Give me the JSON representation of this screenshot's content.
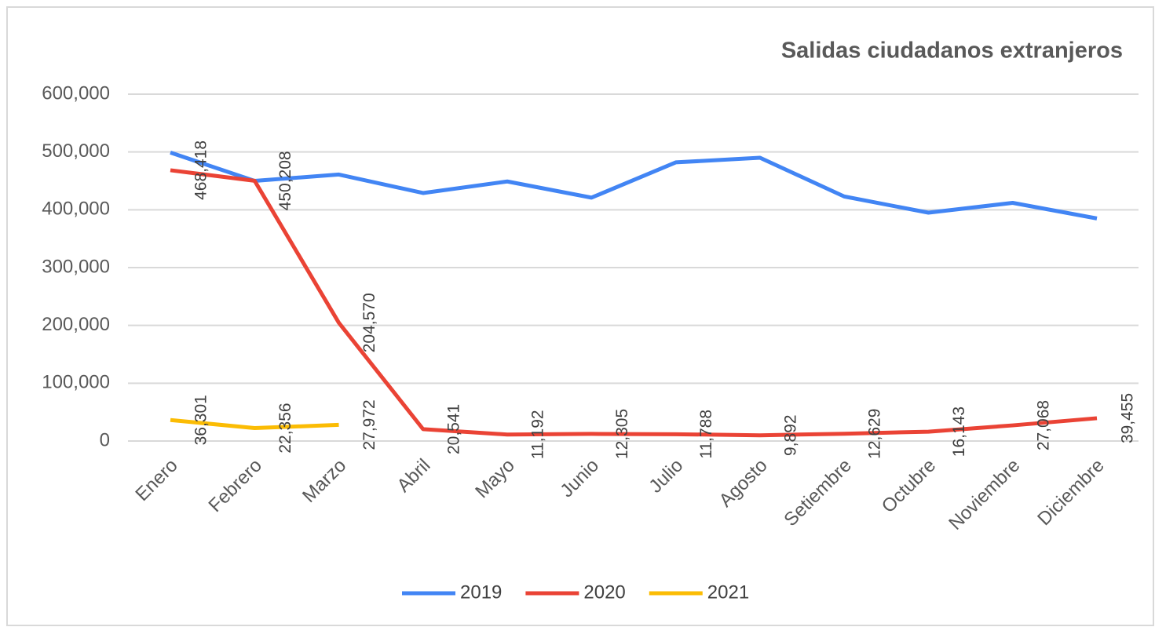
{
  "chart_data": {
    "type": "line",
    "title": "Salidas ciudadanos extranjeros",
    "categories": [
      "Enero",
      "Febrero",
      "Marzo",
      "Abril",
      "Mayo",
      "Junio",
      "Julio",
      "Agosto",
      "Setiembre",
      "Octubre",
      "Noviembre",
      "Diciembre"
    ],
    "series": [
      {
        "name": "2019",
        "color": "#4285f4",
        "values": [
          499000,
          450000,
          461000,
          429000,
          449000,
          421000,
          482000,
          490000,
          423000,
          395000,
          412000,
          385000
        ]
      },
      {
        "name": "2020",
        "color": "#ea4335",
        "values": [
          468418,
          450208,
          204570,
          20541,
          11192,
          12305,
          11788,
          9892,
          12629,
          16143,
          27068,
          39455
        ],
        "value_labels": [
          "468,418",
          "450,208",
          "204,570",
          "20,541",
          "11,192",
          "12,305",
          "11,788",
          "9,892",
          "12,629",
          "16,143",
          "27,068",
          "39,455"
        ]
      },
      {
        "name": "2021",
        "color": "#fbbc04",
        "values": [
          36301,
          22356,
          27972,
          null,
          null,
          null,
          null,
          null,
          null,
          null,
          null,
          null
        ],
        "value_labels": [
          "36,301",
          "22,356",
          "27,972",
          null,
          null,
          null,
          null,
          null,
          null,
          null,
          null,
          null
        ]
      }
    ],
    "ylim": [
      0,
      600000
    ],
    "yticks": [
      0,
      {
        "value": 100000,
        "label": "100,000"
      },
      {
        "value": 200000,
        "label": "200,000"
      },
      {
        "value": 300000,
        "label": "300,000"
      },
      {
        "value": 400000,
        "label": "400,000"
      },
      {
        "value": 500000,
        "label": "500,000"
      },
      {
        "value": 600000,
        "label": "600,000"
      }
    ],
    "grid": true
  }
}
